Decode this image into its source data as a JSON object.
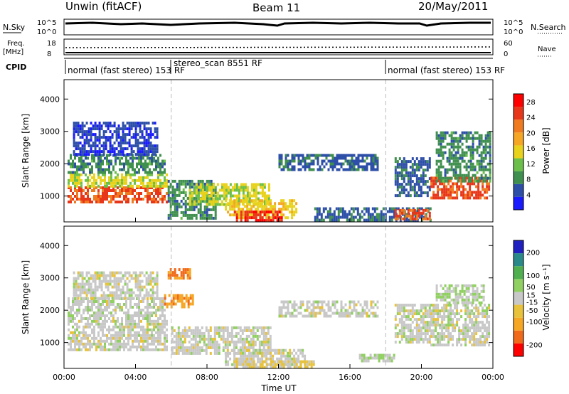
{
  "header": {
    "station": "Unwin (fitACF)",
    "beam": "Beam 11",
    "date": "20/May/2011"
  },
  "summary_panels": {
    "nsky_label": "N.Sky",
    "nsearch_label": "N.Search",
    "nsky_ticks": [
      "10^5",
      "10^0"
    ],
    "nsearch_ticks": [
      "10^5",
      "10^0"
    ],
    "freq_label_1": "Freq.",
    "freq_label_2": "[MHz]",
    "freq_ticks": [
      "18",
      "8"
    ],
    "nave_label": "Nave",
    "nave_ticks": [
      "60",
      "0"
    ],
    "cpid_label": "CPID"
  },
  "cpid_segments": [
    {
      "label": "normal (fast stereo) 153 RF",
      "start_hour": 0,
      "end_hour": 6
    },
    {
      "label": "stereo_scan 8551 RF",
      "start_hour": 6,
      "end_hour": 18
    },
    {
      "label": "normal (fast stereo) 153 RF",
      "start_hour": 18,
      "end_hour": 24
    }
  ],
  "colors": {
    "power": [
      "#1a1aff",
      "#2d4fa8",
      "#3f8f4f",
      "#6cc04a",
      "#e8d21c",
      "#f5a623",
      "#f07a1e",
      "#e8361a",
      "#ff0000"
    ],
    "velocity": [
      "#ff0000",
      "#f06a1a",
      "#f5a623",
      "#e8c23a",
      "#c8c8c8",
      "#90d060",
      "#50b050",
      "#2a8a8a",
      "#2020c0"
    ]
  },
  "chart_data": [
    {
      "type": "heatmap",
      "name": "power",
      "xlabel": "Time UT",
      "ylabel": "Slant Range [km]",
      "xlim": [
        0,
        24
      ],
      "ylim": [
        200,
        4600
      ],
      "x_ticks": [
        "00:00",
        "04:00",
        "08:00",
        "12:00",
        "16:00",
        "20:00",
        "00:00"
      ],
      "y_ticks": [
        1000,
        2000,
        3000,
        4000
      ],
      "colorbar_label": "Power [dB]",
      "colorbar_ticks": [
        4,
        8,
        12,
        16,
        20,
        24,
        28
      ],
      "colorbar_range": [
        0,
        30
      ],
      "regions": [
        {
          "t0": 0.2,
          "t1": 5.8,
          "r0": 800,
          "r1": 1300,
          "level": 24
        },
        {
          "t0": 0.2,
          "t1": 5.8,
          "r0": 1300,
          "r1": 1700,
          "level": 14
        },
        {
          "t0": 0.2,
          "t1": 5.6,
          "r0": 1700,
          "r1": 2300,
          "level": 8
        },
        {
          "t0": 0.5,
          "t1": 5.2,
          "r0": 2300,
          "r1": 3300,
          "level": 4
        },
        {
          "t0": 5.8,
          "t1": 8.5,
          "r0": 300,
          "r1": 1500,
          "level": 8
        },
        {
          "t0": 7.0,
          "t1": 11.5,
          "r0": 700,
          "r1": 1400,
          "level": 14
        },
        {
          "t0": 9.0,
          "t1": 13.0,
          "r0": 300,
          "r1": 900,
          "level": 16
        },
        {
          "t0": 9.5,
          "t1": 12.2,
          "r0": 250,
          "r1": 550,
          "level": 26
        },
        {
          "t0": 12.0,
          "t1": 17.5,
          "r0": 1800,
          "r1": 2300,
          "level": 6
        },
        {
          "t0": 14.0,
          "t1": 20.5,
          "r0": 250,
          "r1": 650,
          "level": 6
        },
        {
          "t0": 18.5,
          "t1": 20.5,
          "r0": 300,
          "r1": 600,
          "level": 24
        },
        {
          "t0": 18.5,
          "t1": 20.5,
          "r0": 1000,
          "r1": 2200,
          "level": 6
        },
        {
          "t0": 20.5,
          "t1": 23.8,
          "r0": 900,
          "r1": 1600,
          "level": 24
        },
        {
          "t0": 20.8,
          "t1": 23.8,
          "r0": 1500,
          "r1": 3000,
          "level": 8
        }
      ]
    },
    {
      "type": "heatmap",
      "name": "velocity",
      "xlabel": "Time UT",
      "ylabel": "Slant Range [km]",
      "xlim": [
        0,
        24
      ],
      "ylim": [
        200,
        4600
      ],
      "x_ticks": [
        "00:00",
        "04:00",
        "08:00",
        "12:00",
        "16:00",
        "20:00",
        "00:00"
      ],
      "y_ticks": [
        1000,
        2000,
        3000,
        4000
      ],
      "colorbar_label": "Velocity [m s⁻¹]",
      "colorbar_ticks": [
        -200,
        -100,
        -50,
        -15,
        15,
        50,
        100,
        200
      ],
      "colorbar_range": [
        -250,
        250
      ],
      "regions": [
        {
          "t0": 0.2,
          "t1": 5.8,
          "r0": 800,
          "r1": 1700,
          "level": 0
        },
        {
          "t0": 0.2,
          "t1": 5.6,
          "r0": 1700,
          "r1": 2400,
          "level": 5
        },
        {
          "t0": 0.5,
          "t1": 5.2,
          "r0": 2400,
          "r1": 3200,
          "level": 0
        },
        {
          "t0": 5.6,
          "t1": 7.2,
          "r0": 2100,
          "r1": 2500,
          "level": -120
        },
        {
          "t0": 5.8,
          "t1": 7.0,
          "r0": 3000,
          "r1": 3300,
          "level": -150
        },
        {
          "t0": 6.0,
          "t1": 11.5,
          "r0": 700,
          "r1": 1500,
          "level": 0
        },
        {
          "t0": 9.0,
          "t1": 13.5,
          "r0": 300,
          "r1": 800,
          "level": 0
        },
        {
          "t0": 9.5,
          "t1": 14.0,
          "r0": 250,
          "r1": 450,
          "level": -40
        },
        {
          "t0": 12.0,
          "t1": 17.5,
          "r0": 1800,
          "r1": 2300,
          "level": 0
        },
        {
          "t0": 16.5,
          "t1": 18.5,
          "r0": 400,
          "r1": 650,
          "level": 30
        },
        {
          "t0": 18.5,
          "t1": 20.5,
          "r0": 1000,
          "r1": 2200,
          "level": 0
        },
        {
          "t0": 20.5,
          "t1": 23.8,
          "r0": 900,
          "r1": 2200,
          "level": 0
        },
        {
          "t0": 20.8,
          "t1": 23.5,
          "r0": 2200,
          "r1": 2800,
          "level": 25
        }
      ]
    }
  ]
}
